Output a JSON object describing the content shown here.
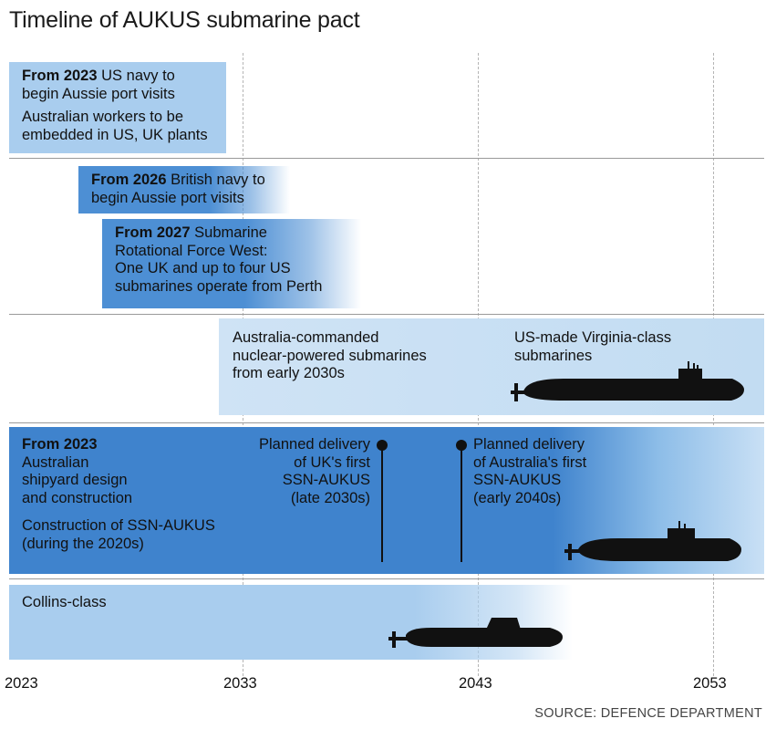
{
  "title": "Timeline of AUKUS submarine pact",
  "source": "SOURCE: DEFENCE DEPARTMENT",
  "axis": {
    "ticks": [
      "2023",
      "2033",
      "2043",
      "2053"
    ]
  },
  "colors": {
    "light_blue": "#a9cdee",
    "mid_blue": "#5a9bdc",
    "dark_blue": "#3f83cd",
    "text": "#111111"
  },
  "row1": {
    "bold": "From 2023",
    "line1_rest": " US navy to",
    "line2": "begin Aussie port visits",
    "line3": "Australian workers to be",
    "line4": "embedded in US, UK plants"
  },
  "row2": {
    "item1_bold": "From 2026",
    "item1_rest": " British navy to",
    "item1_line2": "begin Aussie port visits",
    "item2_bold": "From 2027",
    "item2_rest": " Submarine",
    "item2_line2": "Rotational Force West:",
    "item2_line3": "One UK and up to four US",
    "item2_line4": "submarines operate from Perth"
  },
  "row3": {
    "line1": "Australia-commanded",
    "line2": "nuclear-powered submarines",
    "line3": "from early 2030s",
    "virginia_line1": "US-made Virginia-class",
    "virginia_line2": "submarines",
    "submarine_icon": "virginia-class-submarine-icon"
  },
  "row4": {
    "bold": "From 2023",
    "line2": "Australian",
    "line3": "shipyard design",
    "line4": "and construction",
    "line5": "Construction of SSN-AUKUS",
    "line6": "(during the 2020s)",
    "uk_line1": "Planned delivery",
    "uk_line2": "of UK's first",
    "uk_line3": "SSN-AUKUS",
    "uk_line4": "(late 2030s)",
    "au_line1": "Planned delivery",
    "au_line2": "of Australia's first",
    "au_line3": "SSN-AUKUS",
    "au_line4": "(early 2040s)",
    "submarine_icon": "ssn-aukus-submarine-icon"
  },
  "row5": {
    "label": "Collins-class",
    "submarine_icon": "collins-class-submarine-icon"
  }
}
